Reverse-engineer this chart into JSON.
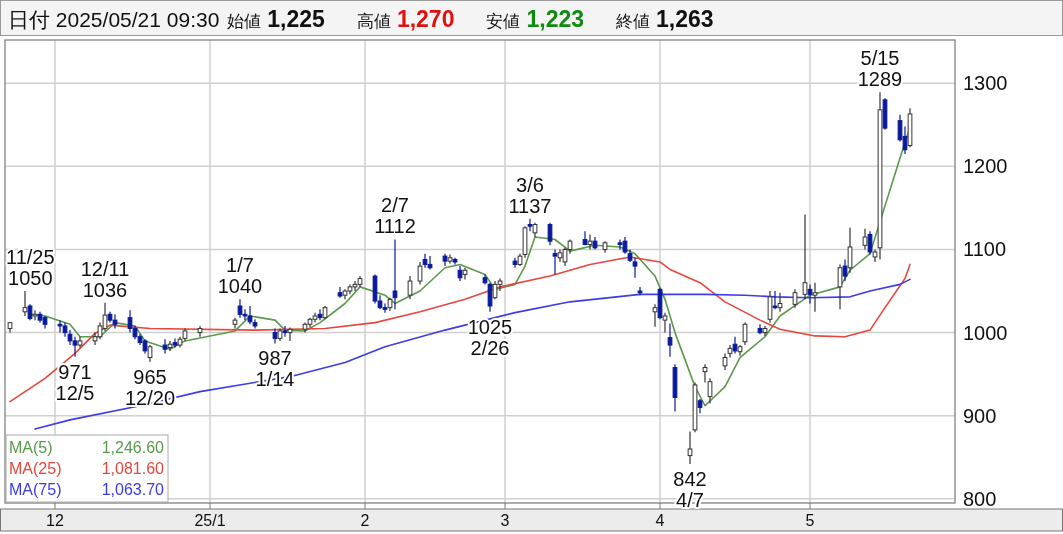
{
  "chart_data": {
    "type": "candlestick",
    "title": "日付 2025/05/21 09:30",
    "x": [
      "2024-11-22",
      "2024-11-25",
      "2024-11-26",
      "2024-11-27",
      "2024-11-28",
      "2024-11-29",
      "2024-12-02",
      "2024-12-03",
      "2024-12-04",
      "2024-12-05",
      "2024-12-06",
      "2024-12-09",
      "2024-12-10",
      "2024-12-11",
      "2024-12-12",
      "2024-12-13",
      "2024-12-16",
      "2024-12-17",
      "2024-12-18",
      "2024-12-19",
      "2024-12-20",
      "2024-12-23",
      "2024-12-24",
      "2024-12-25",
      "2024-12-26",
      "2024-12-27",
      "2024-12-30",
      "2025-01-06",
      "2025-01-07",
      "2025-01-08",
      "2025-01-09",
      "2025-01-10",
      "2025-01-14",
      "2025-01-15",
      "2025-01-16",
      "2025-01-17",
      "2025-01-20",
      "2025-01-21",
      "2025-01-22",
      "2025-01-23",
      "2025-01-24",
      "2025-01-27",
      "2025-01-28",
      "2025-01-29",
      "2025-01-30",
      "2025-01-31",
      "2025-02-03",
      "2025-02-04",
      "2025-02-05",
      "2025-02-06",
      "2025-02-07",
      "2025-02-10",
      "2025-02-12",
      "2025-02-13",
      "2025-02-14",
      "2025-02-17",
      "2025-02-18",
      "2025-02-19",
      "2025-02-20",
      "2025-02-21",
      "2025-02-25",
      "2025-02-26",
      "2025-02-27",
      "2025-02-28",
      "2025-03-03",
      "2025-03-04",
      "2025-03-05",
      "2025-03-06",
      "2025-03-07",
      "2025-03-10",
      "2025-03-11",
      "2025-03-12",
      "2025-03-13",
      "2025-03-14",
      "2025-03-17",
      "2025-03-18",
      "2025-03-19",
      "2025-03-21",
      "2025-03-24",
      "2025-03-25",
      "2025-03-26",
      "2025-03-27",
      "2025-03-28",
      "2025-03-31",
      "2025-04-01",
      "2025-04-02",
      "2025-04-03",
      "2025-04-04",
      "2025-04-07",
      "2025-04-08",
      "2025-04-09",
      "2025-04-10",
      "2025-04-11",
      "2025-04-14",
      "2025-04-15",
      "2025-04-16",
      "2025-04-17",
      "2025-04-18",
      "2025-04-21",
      "2025-04-22",
      "2025-04-23",
      "2025-04-24",
      "2025-04-25",
      "2025-04-28",
      "2025-04-30",
      "2025-05-01",
      "2025-05-02",
      "2025-05-07",
      "2025-05-08",
      "2025-05-09",
      "2025-05-12",
      "2025-05-13",
      "2025-05-14",
      "2025-05-15",
      "2025-05-16",
      "2025-05-19",
      "2025-05-20",
      "2025-05-21"
    ],
    "ohlc": [
      [
        1005,
        1012,
        1000,
        1012
      ],
      [
        1025,
        1050,
        1020,
        1030
      ],
      [
        1032,
        1034,
        1015,
        1017
      ],
      [
        1020,
        1027,
        1015,
        1022
      ],
      [
        1022,
        1025,
        1012,
        1015
      ],
      [
        1018,
        1020,
        1005,
        1010
      ],
      [
        1010,
        1015,
        1000,
        1008
      ],
      [
        1008,
        1012,
        995,
        1000
      ],
      [
        998,
        1003,
        985,
        990
      ],
      [
        990,
        995,
        971,
        985
      ],
      [
        985,
        995,
        982,
        990
      ],
      [
        990,
        1000,
        985,
        995
      ],
      [
        995,
        1012,
        992,
        1008
      ],
      [
        1005,
        1036,
        1002,
        1021
      ],
      [
        1022,
        1025,
        1012,
        1015
      ],
      [
        1015,
        1022,
        1005,
        1010
      ],
      [
        1018,
        1027,
        1000,
        1005
      ],
      [
        1005,
        1008,
        992,
        995
      ],
      [
        995,
        998,
        985,
        988
      ],
      [
        990,
        992,
        975,
        978
      ],
      [
        970,
        985,
        965,
        983
      ],
      [
        985,
        992,
        975,
        980
      ],
      [
        982,
        990,
        978,
        986
      ],
      [
        988,
        993,
        982,
        985
      ],
      [
        985,
        995,
        982,
        992
      ],
      [
        993,
        1005,
        990,
        1002
      ],
      [
        1000,
        1008,
        995,
        1005
      ],
      [
        1010,
        1018,
        1005,
        1015
      ],
      [
        1032,
        1040,
        1018,
        1022
      ],
      [
        1022,
        1028,
        1015,
        1020
      ],
      [
        1020,
        1032,
        1010,
        1013
      ],
      [
        1012,
        1016,
        1005,
        1008
      ],
      [
        1000,
        1005,
        987,
        993
      ],
      [
        993,
        1005,
        990,
        1002
      ],
      [
        1002,
        1008,
        995,
        1000
      ],
      [
        1000,
        1006,
        990,
        1004
      ],
      [
        1004,
        1012,
        1000,
        1010
      ],
      [
        1010,
        1018,
        1006,
        1016
      ],
      [
        1016,
        1024,
        1012,
        1020
      ],
      [
        1022,
        1028,
        1015,
        1018
      ],
      [
        1018,
        1032,
        1016,
        1030
      ],
      [
        1048,
        1055,
        1042,
        1044
      ],
      [
        1045,
        1052,
        1040,
        1050
      ],
      [
        1050,
        1058,
        1046,
        1055
      ],
      [
        1055,
        1062,
        1050,
        1058
      ],
      [
        1058,
        1068,
        1055,
        1065
      ],
      [
        1068,
        1070,
        1035,
        1038
      ],
      [
        1038,
        1045,
        1028,
        1030
      ],
      [
        1030,
        1035,
        1024,
        1028
      ],
      [
        1030,
        1042,
        1026,
        1040
      ],
      [
        1050,
        1112,
        1028,
        1042
      ],
      [
        1045,
        1068,
        1040,
        1062
      ],
      [
        1062,
        1085,
        1058,
        1080
      ],
      [
        1088,
        1095,
        1078,
        1082
      ],
      [
        1082,
        1092,
        1076,
        1078
      ],
      [
        1092,
        1095,
        1080,
        1086
      ],
      [
        1086,
        1094,
        1083,
        1090
      ],
      [
        1088,
        1090,
        1082,
        1085
      ],
      [
        1075,
        1080,
        1062,
        1066
      ],
      [
        1070,
        1078,
        1064,
        1075
      ],
      [
        1066,
        1070,
        1058,
        1060
      ],
      [
        1058,
        1060,
        1025,
        1032
      ],
      [
        1042,
        1062,
        1040,
        1058
      ],
      [
        1058,
        1065,
        1050,
        1062
      ],
      [
        1086,
        1090,
        1078,
        1082
      ],
      [
        1082,
        1095,
        1080,
        1092
      ],
      [
        1094,
        1128,
        1090,
        1126
      ],
      [
        1130,
        1137,
        1122,
        1128
      ],
      [
        1120,
        1132,
        1115,
        1130
      ],
      [
        1130,
        1132,
        1105,
        1110
      ],
      [
        1095,
        1100,
        1070,
        1092
      ],
      [
        1090,
        1100,
        1085,
        1096
      ],
      [
        1085,
        1102,
        1080,
        1100
      ],
      [
        1100,
        1112,
        1095,
        1110
      ],
      [
        1112,
        1122,
        1105,
        1106
      ],
      [
        1106,
        1118,
        1100,
        1110
      ],
      [
        1110,
        1115,
        1100,
        1102
      ],
      [
        1100,
        1110,
        1096,
        1108
      ],
      [
        1108,
        1112,
        1100,
        1106
      ],
      [
        1110,
        1115,
        1095,
        1097
      ],
      [
        1095,
        1100,
        1085,
        1087
      ],
      [
        1085,
        1090,
        1066,
        1080
      ],
      [
        1050,
        1055,
        1045,
        1048
      ],
      [
        1025,
        1034,
        1007,
        1030
      ],
      [
        1052,
        1054,
        1016,
        1018
      ],
      [
        1015,
        1024,
        1000,
        1020
      ],
      [
        994,
        1011,
        971,
        985
      ],
      [
        958,
        962,
        905,
        922
      ],
      [
        852,
        881,
        842,
        860
      ],
      [
        883,
        940,
        880,
        937
      ],
      [
        918,
        920,
        903,
        910
      ],
      [
        953,
        962,
        940,
        958
      ],
      [
        923,
        945,
        915,
        941
      ],
      [
        960,
        975,
        955,
        970
      ],
      [
        975,
        985,
        970,
        981
      ],
      [
        986,
        995,
        975,
        978
      ],
      [
        977,
        985,
        972,
        983
      ],
      [
        989,
        1012,
        985,
        1010
      ],
      [
        1005,
        1010,
        998,
        1000
      ],
      [
        1000,
        1008,
        996,
        1005
      ],
      [
        1016,
        1050,
        1012,
        1043
      ],
      [
        1032,
        1050,
        1028,
        1030
      ],
      [
        1030,
        1048,
        1025,
        1035
      ],
      [
        1034,
        1052,
        1030,
        1048
      ],
      [
        1046,
        1142,
        1040,
        1060
      ],
      [
        1052,
        1058,
        1035,
        1046
      ],
      [
        1045,
        1060,
        1025,
        1048
      ],
      [
        1055,
        1082,
        1028,
        1078
      ],
      [
        1080,
        1088,
        1062,
        1068
      ],
      [
        1078,
        1126,
        1072,
        1103
      ],
      [
        1105,
        1125,
        1100,
        1115
      ],
      [
        1118,
        1122,
        1094,
        1097
      ],
      [
        1091,
        1100,
        1085,
        1097
      ],
      [
        1102,
        1289,
        1088,
        1268
      ],
      [
        1280,
        1282,
        1244,
        1246
      ],
      [
        1255,
        1262,
        1230,
        1232
      ],
      [
        1236,
        1248,
        1215,
        1220
      ],
      [
        1225,
        1270,
        1223,
        1263
      ]
    ],
    "series": [
      {
        "name": "MA(5)",
        "type": "line",
        "color": "#5a9a4a",
        "x": [
          "2024-11-26",
          "2024-11-29",
          "2024-12-04",
          "2024-12-06",
          "2024-12-10",
          "2024-12-13",
          "2024-12-17",
          "2024-12-19",
          "2024-12-24",
          "2024-12-27",
          "2025-01-06",
          "2025-01-09",
          "2025-01-14",
          "2025-01-16",
          "2025-01-20",
          "2025-01-23",
          "2025-01-28",
          "2025-01-31",
          "2025-02-05",
          "2025-02-07",
          "2025-02-12",
          "2025-02-17",
          "2025-02-20",
          "2025-02-25",
          "2025-02-27",
          "2025-03-03",
          "2025-03-05",
          "2025-03-07",
          "2025-03-11",
          "2025-03-14",
          "2025-03-19",
          "2025-03-24",
          "2025-03-27",
          "2025-03-31",
          "2025-04-02",
          "2025-04-04",
          "2025-04-08",
          "2025-04-10",
          "2025-04-14",
          "2025-04-17",
          "2025-04-22",
          "2025-04-25",
          "2025-05-01",
          "2025-05-07",
          "2025-05-09",
          "2025-05-13",
          "2025-05-19",
          "2025-05-21"
        ],
        "values": [
          1022,
          1020,
          1010,
          995,
          995,
          1012,
          1008,
          990,
          980,
          990,
          1002,
          1020,
          1015,
          1003,
          1002,
          1012,
          1035,
          1055,
          1045,
          1035,
          1050,
          1078,
          1082,
          1070,
          1052,
          1058,
          1080,
          1115,
          1112,
          1098,
          1105,
          1103,
          1095,
          1068,
          1040,
          1000,
          935,
          912,
          935,
          970,
          995,
          1020,
          1045,
          1055,
          1075,
          1095,
          1210,
          1247
        ]
      },
      {
        "name": "MA(25)",
        "type": "line",
        "color": "#e8463c",
        "x": [
          "2024-11-22",
          "2024-11-29",
          "2024-12-05",
          "2024-12-09",
          "2024-12-12",
          "2024-12-20",
          "2025-01-10",
          "2025-01-24",
          "2025-02-03",
          "2025-02-12",
          "2025-02-21",
          "2025-02-28",
          "2025-03-10",
          "2025-03-18",
          "2025-03-26",
          "2025-04-01",
          "2025-04-03",
          "2025-04-09",
          "2025-04-14",
          "2025-04-21",
          "2025-04-25",
          "2025-05-02",
          "2025-05-08",
          "2025-05-13",
          "2025-05-16",
          "2025-05-20",
          "2025-05-21"
        ],
        "values": [
          917,
          945,
          975,
          999,
          1009,
          1005,
          1003,
          1005,
          1012,
          1025,
          1040,
          1055,
          1068,
          1082,
          1091,
          1085,
          1076,
          1060,
          1037,
          1015,
          1004,
          996,
          995,
          1003,
          1030,
          1065,
          1082
        ]
      },
      {
        "name": "MA(75)",
        "type": "line",
        "color": "#3c3ce8",
        "x": [
          "2024-11-27",
          "2024-12-04",
          "2024-12-18",
          "2024-12-30",
          "2025-01-17",
          "2025-01-28",
          "2025-02-05",
          "2025-02-17",
          "2025-03-03",
          "2025-03-14",
          "2025-03-28",
          "2025-04-10",
          "2025-04-18",
          "2025-04-24",
          "2025-05-01",
          "2025-05-09",
          "2025-05-13",
          "2025-05-19",
          "2025-05-21"
        ],
        "values": [
          884,
          895,
          912,
          929,
          947,
          964,
          983,
          1003,
          1024,
          1037,
          1046,
          1046,
          1045,
          1043,
          1042,
          1043,
          1050,
          1058,
          1064
        ]
      }
    ],
    "ylim": [
      795,
      1352
    ],
    "yticks": [
      800,
      900,
      1000,
      1100,
      1200,
      1300
    ],
    "xlim": [
      "2024-11-21",
      "2025-05-30"
    ],
    "xticks": [
      {
        "value": "2024-12-01",
        "label": "12"
      },
      {
        "value": "2025-01-01",
        "label": "25/1"
      },
      {
        "value": "2025-02-01",
        "label": "2"
      },
      {
        "value": "2025-03-01",
        "label": "3"
      },
      {
        "value": "2025-04-01",
        "label": "4"
      },
      {
        "value": "2025-05-01",
        "label": "5"
      }
    ],
    "grid": true,
    "legend": "bottom left",
    "annotations": [
      "始値",
      "1,225",
      "高値",
      "1,270",
      "安値",
      "1,223",
      "終値",
      "1,263",
      "1,246.60",
      "1,081.60",
      "1,063.70",
      {
        "text": "11/25 1050",
        "x": "2024-11-25",
        "y": 1050
      },
      {
        "text": "971 12/5",
        "x": "2024-12-05",
        "y": 971
      },
      {
        "text": "12/11 1036",
        "x": "2024-12-11",
        "y": 1036
      },
      {
        "text": "965 12/20",
        "x": "2024-12-20",
        "y": 965
      },
      {
        "text": "1/7 1040",
        "x": "2025-01-07",
        "y": 1040
      },
      {
        "text": "987 1/14",
        "x": "2025-01-14",
        "y": 987
      },
      {
        "text": "2/7 1112",
        "x": "2025-02-07",
        "y": 1112
      },
      {
        "text": "1025 2/26",
        "x": "2025-02-26",
        "y": 1025
      },
      {
        "text": "3/6 1137",
        "x": "2025-03-06",
        "y": 1137
      },
      {
        "text": "842 4/7",
        "x": "2025-04-07",
        "y": 842
      },
      {
        "text": "5/15 1289",
        "x": "2025-05-15",
        "y": 1289
      }
    ]
  }
}
